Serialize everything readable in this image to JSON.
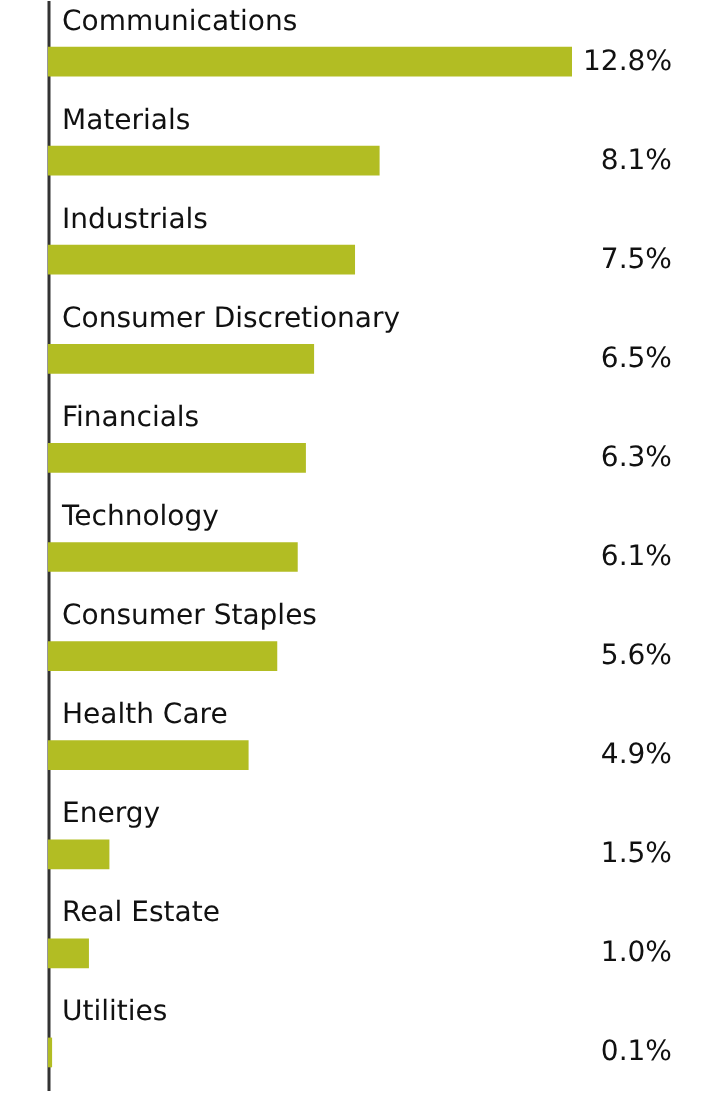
{
  "chart_data": {
    "type": "bar",
    "orientation": "horizontal",
    "categories": [
      "Communications",
      "Materials",
      "Industrials",
      "Consumer Discretionary",
      "Financials",
      "Technology",
      "Consumer Staples",
      "Health Care",
      "Energy",
      "Real Estate",
      "Utilities"
    ],
    "values": [
      12.8,
      8.1,
      7.5,
      6.5,
      6.3,
      6.1,
      5.6,
      4.9,
      1.5,
      1.0,
      0.1
    ],
    "value_labels": [
      "12.8%",
      "8.1%",
      "7.5%",
      "6.5%",
      "6.3%",
      "6.1%",
      "5.6%",
      "4.9%",
      "1.5%",
      "1.0%",
      "0.1%"
    ],
    "color": "#b2bd23"
  }
}
